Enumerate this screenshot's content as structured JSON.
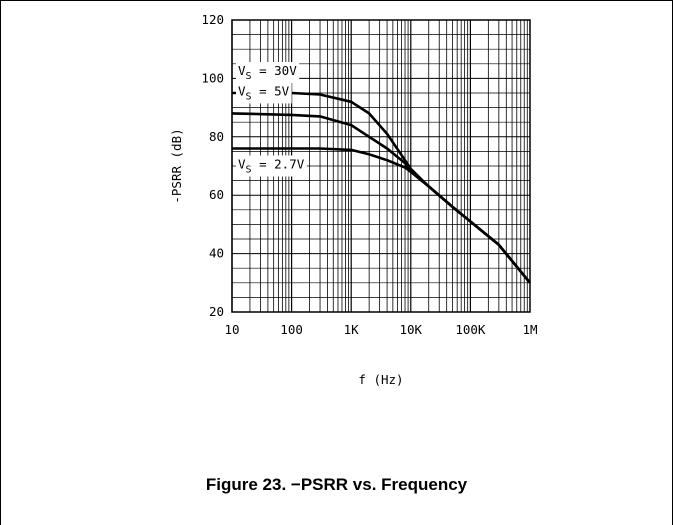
{
  "caption": "Figure 23. −PSRR vs. Frequency",
  "chart_data": {
    "type": "line",
    "xlabel": "f (Hz)",
    "ylabel": "-PSRR (dB)",
    "x_scale": "log",
    "xlim": [
      10,
      1000000
    ],
    "ylim": [
      20,
      120
    ],
    "x_ticks": [
      10,
      100,
      1000,
      10000,
      100000,
      1000000
    ],
    "x_tick_labels": [
      "10",
      "100",
      "1K",
      "10K",
      "100K",
      "1M"
    ],
    "y_ticks": [
      20,
      40,
      60,
      80,
      100,
      120
    ],
    "y_tick_labels": [
      "20",
      "40",
      "60",
      "80",
      "100",
      "120"
    ],
    "grid": true,
    "series": [
      {
        "name": "Vs = 30V",
        "label_main": "V",
        "label_sub": "S",
        "label_rest": " = 30V",
        "x": [
          10,
          100,
          300,
          1000,
          2000,
          4000,
          8000,
          10000,
          20000,
          50000,
          100000,
          300000,
          1000000
        ],
        "y": [
          95,
          95,
          94.5,
          92,
          88,
          81,
          72,
          69,
          63,
          56,
          51,
          43,
          30
        ]
      },
      {
        "name": "Vs = 5V",
        "label_main": "V",
        "label_sub": "S",
        "label_rest": " = 5V",
        "x": [
          10,
          100,
          300,
          1000,
          2000,
          4000,
          8000,
          10000,
          20000,
          50000,
          100000,
          300000,
          1000000
        ],
        "y": [
          88,
          87.5,
          87,
          84,
          80,
          76,
          71,
          68,
          63,
          56,
          51,
          43,
          30
        ]
      },
      {
        "name": "Vs = 2.7V",
        "label_main": "V",
        "label_sub": "S",
        "label_rest": " = 2.7V",
        "x": [
          10,
          100,
          300,
          1000,
          2000,
          4000,
          8000,
          10000,
          20000,
          50000,
          100000,
          300000,
          1000000
        ],
        "y": [
          76,
          76,
          76,
          75.5,
          74,
          72,
          69.5,
          68,
          63,
          56,
          51,
          43,
          30
        ]
      }
    ],
    "colors": {
      "line": "#000000",
      "grid": "#000000",
      "background": "#ffffff"
    }
  }
}
